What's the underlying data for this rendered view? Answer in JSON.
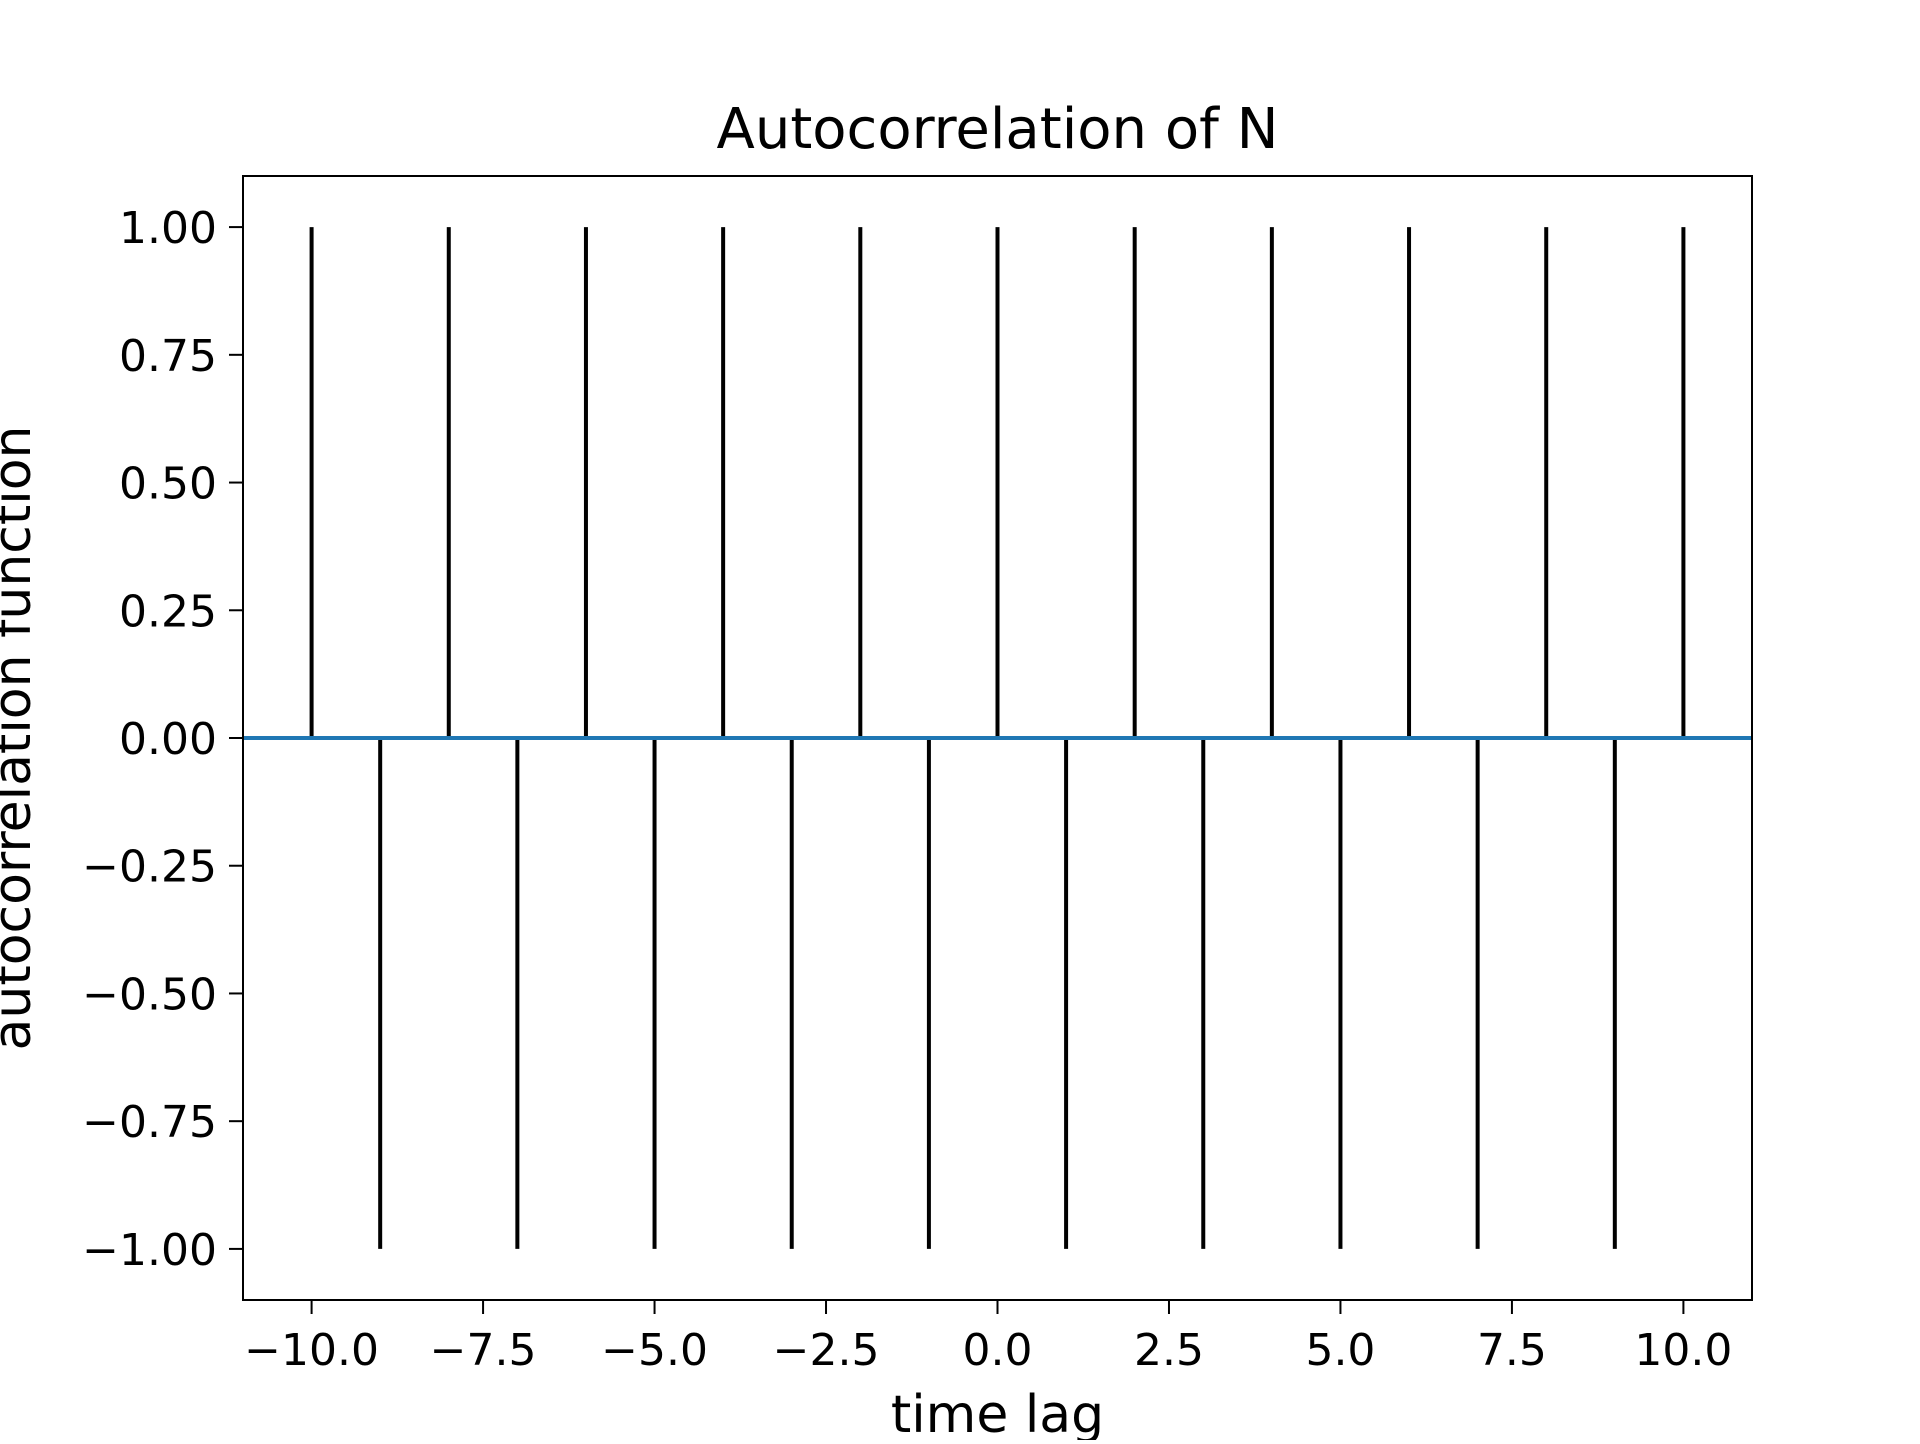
{
  "chart_data": {
    "type": "bar",
    "title": "Autocorrelation of N",
    "xlabel": "time lag",
    "ylabel": "autocorrelation function",
    "xlim": [
      -11,
      11
    ],
    "ylim": [
      -1.1,
      1.1
    ],
    "grid": false,
    "x": [
      -10,
      -9,
      -8,
      -7,
      -6,
      -5,
      -4,
      -3,
      -2,
      -1,
      0,
      1,
      2,
      3,
      4,
      5,
      6,
      7,
      8,
      9,
      10
    ],
    "values": [
      1,
      -1,
      1,
      -1,
      1,
      -1,
      1,
      -1,
      1,
      -1,
      1,
      -1,
      1,
      -1,
      1,
      -1,
      1,
      -1,
      1,
      -1,
      1
    ],
    "bar_color": "#000000",
    "baseline_y": 0.0,
    "baseline_color": "#1f77b4",
    "xticks": [
      -10.0,
      -7.5,
      -5.0,
      -2.5,
      0.0,
      2.5,
      5.0,
      7.5,
      10.0
    ],
    "xtick_labels": [
      "−10.0",
      "−7.5",
      "−5.0",
      "−2.5",
      "0.0",
      "2.5",
      "5.0",
      "7.5",
      "10.0"
    ],
    "yticks": [
      1.0,
      0.75,
      0.5,
      0.25,
      0.0,
      -0.25,
      -0.5,
      -0.75,
      -1.0
    ],
    "ytick_labels": [
      "1.00",
      "0.75",
      "0.50",
      "0.25",
      "0.00",
      "−0.25",
      "−0.50",
      "−0.75",
      "−1.00"
    ]
  }
}
